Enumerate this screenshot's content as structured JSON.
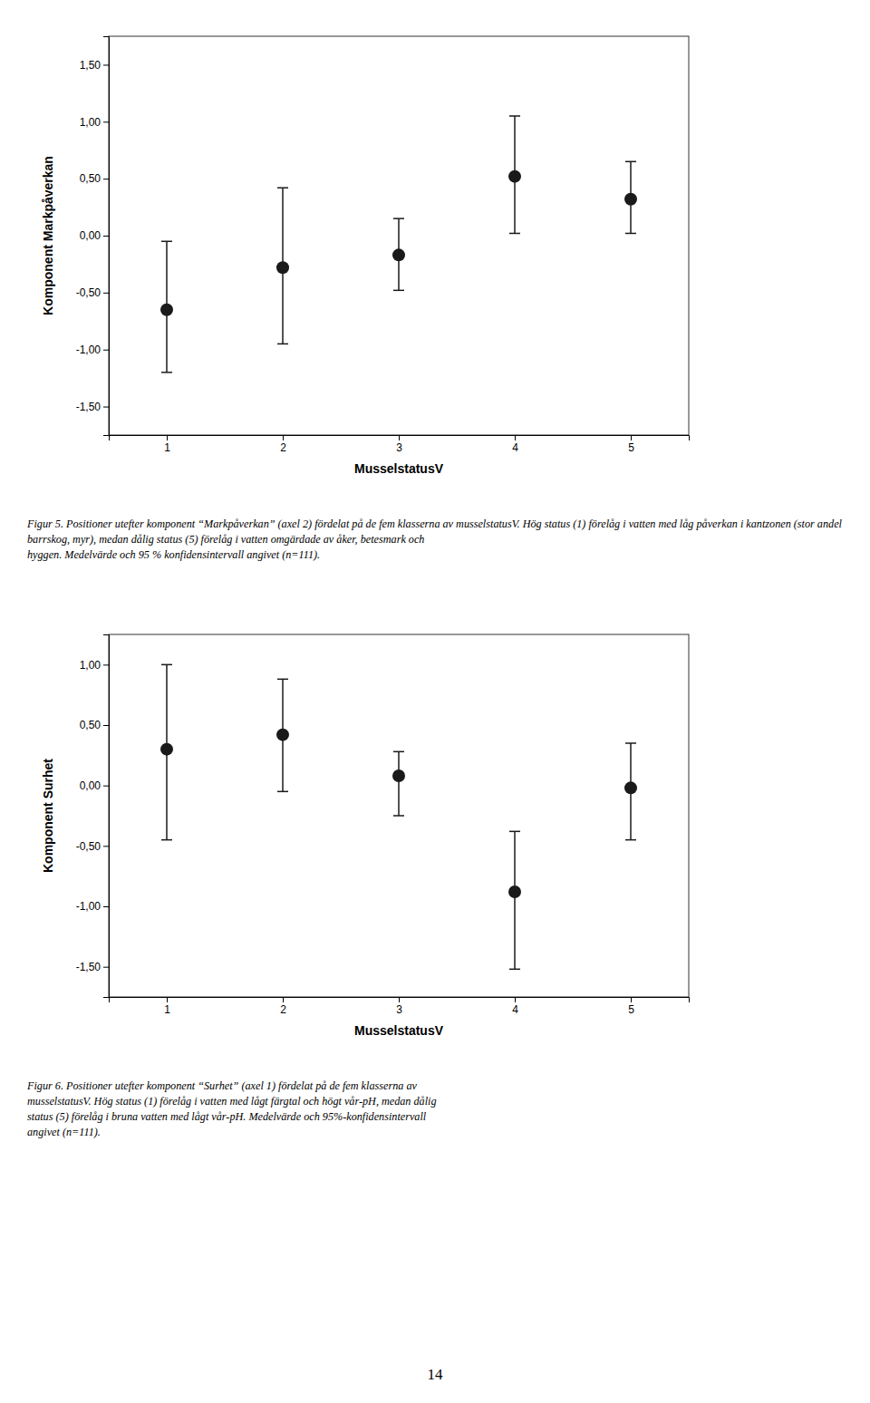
{
  "chart_data": [
    {
      "type": "errorbar",
      "xlabel": "MusselstatusV",
      "ylabel": "Komponent Markpåverkan",
      "x": [
        1,
        2,
        3,
        4,
        5
      ],
      "values": [
        -0.65,
        -0.28,
        -0.17,
        0.52,
        0.32
      ],
      "ci_low": [
        -1.2,
        -0.95,
        -0.48,
        0.02,
        0.02
      ],
      "ci_high": [
        -0.05,
        0.42,
        0.15,
        1.05,
        0.65
      ],
      "color": "#1a1a1a",
      "grid": false,
      "xlim": [
        0.5,
        5.5
      ],
      "xticks": [
        1,
        2,
        3,
        4,
        5
      ],
      "ylim": [
        -1.75,
        1.75
      ],
      "yticks": [
        {
          "value": -1.5,
          "label": "-1,50"
        },
        {
          "value": -1.0,
          "label": "-1,00"
        },
        {
          "value": -0.5,
          "label": "-0,50"
        },
        {
          "value": 0.0,
          "label": "0,00"
        },
        {
          "value": 0.5,
          "label": "0,50"
        },
        {
          "value": 1.0,
          "label": "1,00"
        },
        {
          "value": 1.5,
          "label": "1,50"
        }
      ],
      "caption": [
        "Figur 5. Positioner utefter komponent “Markpåverkan” (axel 2) fördelat på de fem klasserna av musselstatusV. Hög status (1) förelåg i vatten med låg påverkan i kantzonen (stor andel",
        "barrskog, myr), medan dålig status (5) förelåg i vatten omgärdade av åker, betesmark och",
        "hyggen. Medelvärde och 95 % konfidensintervall angivet (n=111)."
      ]
    },
    {
      "type": "errorbar",
      "xlabel": "MusselstatusV",
      "ylabel": "Komponent Surhet",
      "x": [
        1,
        2,
        3,
        4,
        5
      ],
      "values": [
        0.3,
        0.42,
        0.08,
        -0.88,
        -0.02
      ],
      "ci_low": [
        -0.45,
        -0.05,
        -0.25,
        -1.52,
        -0.45
      ],
      "ci_high": [
        1.0,
        0.88,
        0.28,
        -0.38,
        0.35
      ],
      "color": "#1a1a1a",
      "grid": false,
      "xlim": [
        0.5,
        5.5
      ],
      "xticks": [
        1,
        2,
        3,
        4,
        5
      ],
      "ylim": [
        -1.75,
        1.25
      ],
      "yticks": [
        {
          "value": -1.5,
          "label": "-1,50"
        },
        {
          "value": -1.0,
          "label": "-1,00"
        },
        {
          "value": -0.5,
          "label": "-0,50"
        },
        {
          "value": 0.0,
          "label": "0,00"
        },
        {
          "value": 0.5,
          "label": "0,50"
        },
        {
          "value": 1.0,
          "label": "1,00"
        }
      ],
      "caption": [
        "Figur 6. Positioner utefter komponent “Surhet” (axel 1) fördelat på de fem klasserna av",
        "musselstatusV. Hög status (1) förelåg i vatten med lågt färgtal och högt vår-pH, medan dålig",
        "status (5) förelåg i bruna vatten med lågt vår-pH. Medelvärde och 95%-konfidensintervall",
        "angivet (n=111)."
      ]
    }
  ],
  "page_number": "14"
}
